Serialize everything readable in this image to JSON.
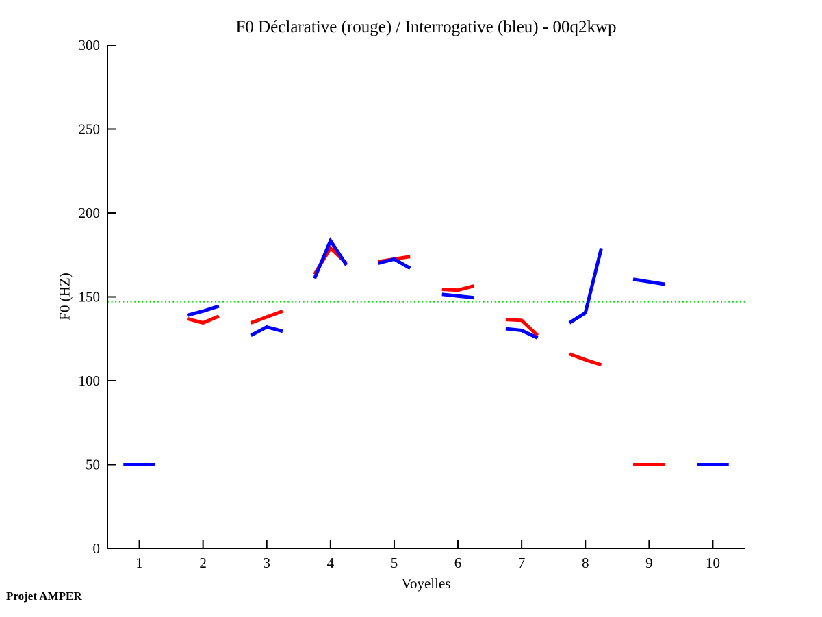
{
  "page": {
    "background": "#ffffff"
  },
  "footer": {
    "text": "Projet AMPER"
  },
  "chart_data": {
    "type": "line",
    "title": "F0 Déclarative (rouge) / Interrogative (bleu) - 00q2kwp",
    "xlabel": "Voyelles",
    "ylabel": "F0 (HZ)",
    "xlim": [
      0.5,
      10.5
    ],
    "ylim": [
      0,
      300
    ],
    "xticks": [
      1,
      2,
      3,
      4,
      5,
      6,
      7,
      8,
      9,
      10
    ],
    "yticks": [
      0,
      50,
      100,
      150,
      200,
      250,
      300
    ],
    "grid": false,
    "legend_position": "none",
    "axis_color": "#000000",
    "line_width": 5,
    "reference_line": {
      "y": 147,
      "color": "#00dd00",
      "style": "dotted"
    },
    "series": [
      {
        "name": "Déclarative (rouge)",
        "color": "#ff0000",
        "segments": [
          {
            "vowel": 2,
            "x": [
              1.75,
              2,
              2.25
            ],
            "y": [
              137,
              134.5,
              138.5
            ]
          },
          {
            "vowel": 3,
            "x": [
              2.75,
              3,
              3.25
            ],
            "y": [
              134.5,
              138,
              141.5
            ]
          },
          {
            "vowel": 4,
            "x": [
              3.75,
              4,
              4.25
            ],
            "y": [
              163.5,
              179,
              170
            ]
          },
          {
            "vowel": 5,
            "x": [
              4.75,
              5,
              5.25
            ],
            "y": [
              171,
              172.5,
              174
            ]
          },
          {
            "vowel": 6,
            "x": [
              5.75,
              6,
              6.25
            ],
            "y": [
              154.5,
              154,
              156.5
            ]
          },
          {
            "vowel": 7,
            "x": [
              6.75,
              7,
              7.25
            ],
            "y": [
              136.5,
              136,
              127
            ]
          },
          {
            "vowel": 8,
            "x": [
              7.75,
              8,
              8.25
            ],
            "y": [
              116,
              112.5,
              109.5
            ]
          },
          {
            "vowel": 9,
            "x": [
              8.75,
              9,
              9.25
            ],
            "y": [
              50,
              50,
              50
            ]
          }
        ]
      },
      {
        "name": "Interrogative (bleu)",
        "color": "#0000ff",
        "segments": [
          {
            "vowel": 1,
            "x": [
              0.75,
              1,
              1.25
            ],
            "y": [
              50,
              50,
              50
            ]
          },
          {
            "vowel": 2,
            "x": [
              1.75,
              2,
              2.25
            ],
            "y": [
              139,
              141.5,
              144.5
            ]
          },
          {
            "vowel": 3,
            "x": [
              2.75,
              3,
              3.25
            ],
            "y": [
              127,
              132,
              129.5
            ]
          },
          {
            "vowel": 4,
            "x": [
              3.75,
              4,
              4.25
            ],
            "y": [
              161,
              183.5,
              169
            ]
          },
          {
            "vowel": 5,
            "x": [
              4.75,
              5,
              5.25
            ],
            "y": [
              170,
              172.5,
              167
            ]
          },
          {
            "vowel": 6,
            "x": [
              5.75,
              6,
              6.25
            ],
            "y": [
              151.5,
              150.5,
              149.5
            ]
          },
          {
            "vowel": 7,
            "x": [
              6.75,
              7,
              7.25
            ],
            "y": [
              131,
              130,
              125.5
            ]
          },
          {
            "vowel": 8,
            "x": [
              7.75,
              8,
              8.25
            ],
            "y": [
              134.5,
              140.5,
              179
            ]
          },
          {
            "vowel": 9,
            "x": [
              8.75,
              9,
              9.25
            ],
            "y": [
              160.5,
              159,
              157.5
            ]
          },
          {
            "vowel": 10,
            "x": [
              9.75,
              10,
              10.25
            ],
            "y": [
              50,
              50,
              50
            ]
          }
        ]
      }
    ]
  }
}
